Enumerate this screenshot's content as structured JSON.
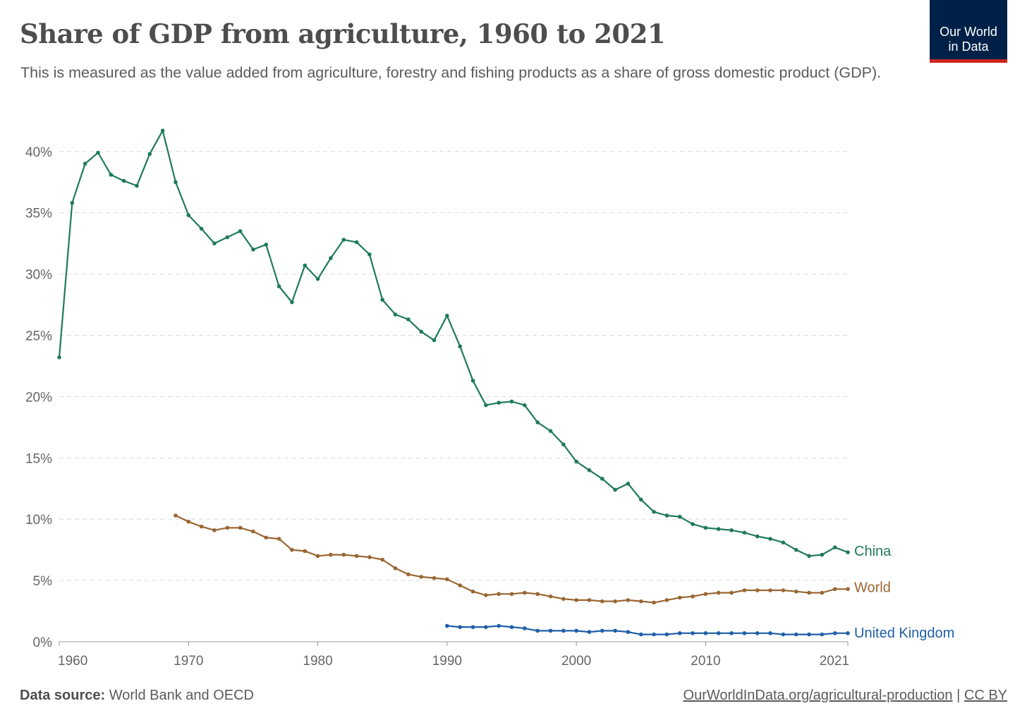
{
  "header": {
    "title": "Share of GDP from agriculture, 1960 to 2021",
    "subtitle": "This is measured as the value added from agriculture, forestry and fishing products as a share of gross domestic product (GDP).",
    "logo_line1": "Our World",
    "logo_line2": "in Data"
  },
  "footer": {
    "source_label": "Data source:",
    "source_text": "World Bank and OECD",
    "url": "OurWorldInData.org/agricultural-production",
    "separator": "|",
    "license": "CC BY"
  },
  "colors": {
    "China": "#1f7a5a",
    "World": "#996633",
    "United Kingdom": "#1f5fa8"
  },
  "chart_data": {
    "type": "line",
    "ylabel": "",
    "xlabel": "",
    "xlim": [
      1960,
      2021
    ],
    "ylim": [
      0,
      42
    ],
    "x_ticks": [
      1960,
      1970,
      1980,
      1990,
      2000,
      2010,
      2021
    ],
    "y_ticks": [
      0,
      5,
      10,
      15,
      20,
      25,
      30,
      35,
      40
    ],
    "y_tick_labels": [
      "0%",
      "5%",
      "10%",
      "15%",
      "20%",
      "25%",
      "30%",
      "35%",
      "40%"
    ],
    "grid": "horizontal dashed",
    "legend": "inline labels at line ends",
    "series": [
      {
        "name": "China",
        "x": [
          1960,
          1961,
          1962,
          1963,
          1964,
          1965,
          1966,
          1967,
          1968,
          1969,
          1970,
          1971,
          1972,
          1973,
          1974,
          1975,
          1976,
          1977,
          1978,
          1979,
          1980,
          1981,
          1982,
          1983,
          1984,
          1985,
          1986,
          1987,
          1988,
          1989,
          1990,
          1991,
          1992,
          1993,
          1994,
          1995,
          1996,
          1997,
          1998,
          1999,
          2000,
          2001,
          2002,
          2003,
          2004,
          2005,
          2006,
          2007,
          2008,
          2009,
          2010,
          2011,
          2012,
          2013,
          2014,
          2015,
          2016,
          2017,
          2018,
          2019,
          2020,
          2021
        ],
        "values": [
          23.2,
          35.8,
          39.0,
          39.9,
          38.1,
          37.6,
          37.2,
          39.8,
          41.7,
          37.5,
          34.8,
          33.7,
          32.5,
          33.0,
          33.5,
          32.0,
          32.4,
          29.0,
          27.7,
          30.7,
          29.6,
          31.3,
          32.8,
          32.6,
          31.6,
          27.9,
          26.7,
          26.3,
          25.3,
          24.6,
          26.6,
          24.1,
          21.3,
          19.3,
          19.5,
          19.6,
          19.3,
          17.9,
          17.2,
          16.1,
          14.7,
          14.0,
          13.3,
          12.4,
          12.9,
          11.6,
          10.6,
          10.3,
          10.2,
          9.6,
          9.3,
          9.2,
          9.1,
          8.9,
          8.6,
          8.4,
          8.1,
          7.5,
          7.0,
          7.1,
          7.7,
          7.3
        ]
      },
      {
        "name": "World",
        "x": [
          1969,
          1970,
          1971,
          1972,
          1973,
          1974,
          1975,
          1976,
          1977,
          1978,
          1979,
          1980,
          1981,
          1982,
          1983,
          1984,
          1985,
          1986,
          1987,
          1988,
          1989,
          1990,
          1991,
          1992,
          1993,
          1994,
          1995,
          1996,
          1997,
          1998,
          1999,
          2000,
          2001,
          2002,
          2003,
          2004,
          2005,
          2006,
          2007,
          2008,
          2009,
          2010,
          2011,
          2012,
          2013,
          2014,
          2015,
          2016,
          2017,
          2018,
          2019,
          2020,
          2021
        ],
        "values": [
          10.3,
          9.8,
          9.4,
          9.1,
          9.3,
          9.3,
          9.0,
          8.5,
          8.4,
          7.5,
          7.4,
          7.0,
          7.1,
          7.1,
          7.0,
          6.9,
          6.7,
          6.0,
          5.5,
          5.3,
          5.2,
          5.1,
          4.6,
          4.1,
          3.8,
          3.9,
          3.9,
          4.0,
          3.9,
          3.7,
          3.5,
          3.4,
          3.4,
          3.3,
          3.3,
          3.4,
          3.3,
          3.2,
          3.4,
          3.6,
          3.7,
          3.9,
          4.0,
          4.0,
          4.2,
          4.2,
          4.2,
          4.2,
          4.1,
          4.0,
          4.0,
          4.3,
          4.3
        ]
      },
      {
        "name": "United Kingdom",
        "x": [
          1990,
          1991,
          1992,
          1993,
          1994,
          1995,
          1996,
          1997,
          1998,
          1999,
          2000,
          2001,
          2002,
          2003,
          2004,
          2005,
          2006,
          2007,
          2008,
          2009,
          2010,
          2011,
          2012,
          2013,
          2014,
          2015,
          2016,
          2017,
          2018,
          2019,
          2020,
          2021
        ],
        "values": [
          1.3,
          1.2,
          1.2,
          1.2,
          1.3,
          1.2,
          1.1,
          0.9,
          0.9,
          0.9,
          0.9,
          0.8,
          0.9,
          0.9,
          0.8,
          0.6,
          0.6,
          0.6,
          0.7,
          0.7,
          0.7,
          0.7,
          0.7,
          0.7,
          0.7,
          0.7,
          0.6,
          0.6,
          0.6,
          0.6,
          0.7,
          0.7
        ]
      }
    ]
  }
}
